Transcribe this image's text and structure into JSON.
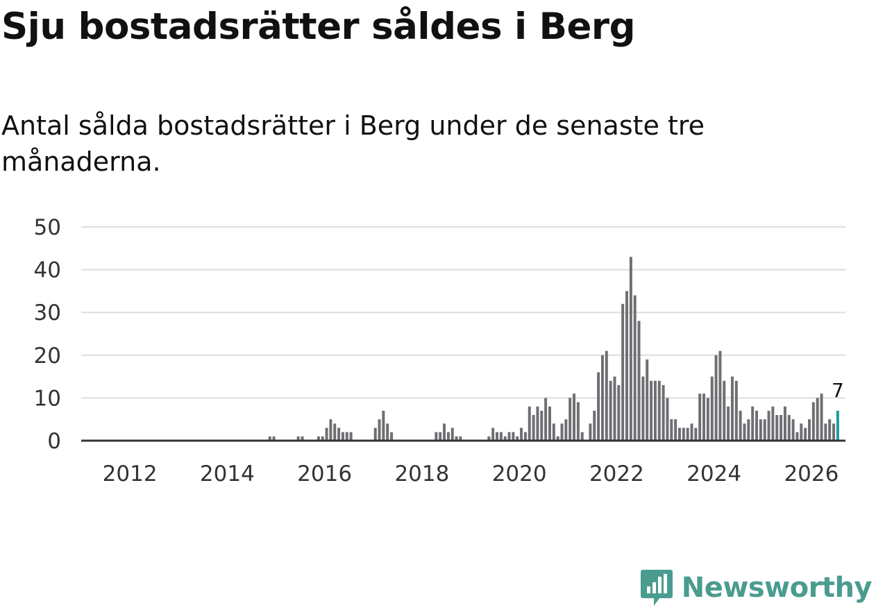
{
  "title": "Sju bostadsrätter såldes i Berg",
  "subtitle": "Antal sålda bostadsrätter i Berg under de senaste tre månaderna.",
  "brand": "Newsworthy",
  "colors": {
    "bar": "#6e6e73",
    "highlight": "#1a9e96",
    "grid": "#dddddd",
    "axis": "#333333",
    "brand": "#4a9c8f"
  },
  "chart_data": {
    "type": "bar",
    "title": "Sju bostadsrätter såldes i Berg",
    "subtitle": "Antal sålda bostadsrätter i Berg under de senaste tre månaderna.",
    "xlabel": "",
    "ylabel": "",
    "x_start": "2011-01",
    "x_range": [
      2011.0,
      2026.7
    ],
    "ylim": [
      0,
      50
    ],
    "yticks": [
      0,
      10,
      20,
      30,
      40,
      50
    ],
    "xticks": [
      2012,
      2014,
      2016,
      2018,
      2020,
      2022,
      2024,
      2026
    ],
    "grid": true,
    "highlight_last": true,
    "last_value_label": "7",
    "values": [
      0,
      0,
      0,
      0,
      0,
      0,
      0,
      0,
      0,
      0,
      0,
      0,
      0,
      0,
      0,
      0,
      0,
      0,
      0,
      0,
      0,
      0,
      0,
      0,
      0,
      0,
      0,
      0,
      0,
      0,
      0,
      0,
      0,
      0,
      0,
      0,
      0,
      0,
      0,
      0,
      0,
      0,
      0,
      0,
      0,
      0,
      1,
      1,
      0,
      0,
      0,
      0,
      0,
      1,
      1,
      0,
      0,
      0,
      1,
      1,
      3,
      5,
      4,
      3,
      2,
      2,
      2,
      0,
      0,
      0,
      0,
      0,
      3,
      5,
      7,
      4,
      2,
      0,
      0,
      0,
      0,
      0,
      0,
      0,
      0,
      0,
      0,
      2,
      2,
      4,
      2,
      3,
      1,
      1,
      0,
      0,
      0,
      0,
      0,
      0,
      1,
      3,
      2,
      2,
      1,
      2,
      2,
      1,
      3,
      2,
      8,
      6,
      8,
      7,
      10,
      8,
      4,
      1,
      4,
      5,
      10,
      11,
      9,
      2,
      0,
      4,
      7,
      16,
      20,
      21,
      14,
      15,
      13,
      32,
      35,
      43,
      34,
      28,
      15,
      19,
      14,
      14,
      14,
      13,
      10,
      5,
      5,
      3,
      3,
      3,
      4,
      3,
      11,
      11,
      10,
      15,
      20,
      21,
      14,
      8,
      15,
      14,
      7,
      4,
      5,
      8,
      7,
      5,
      5,
      7,
      8,
      6,
      6,
      8,
      6,
      5,
      2,
      4,
      3,
      5,
      9,
      10,
      11,
      4,
      5,
      4,
      7
    ]
  }
}
